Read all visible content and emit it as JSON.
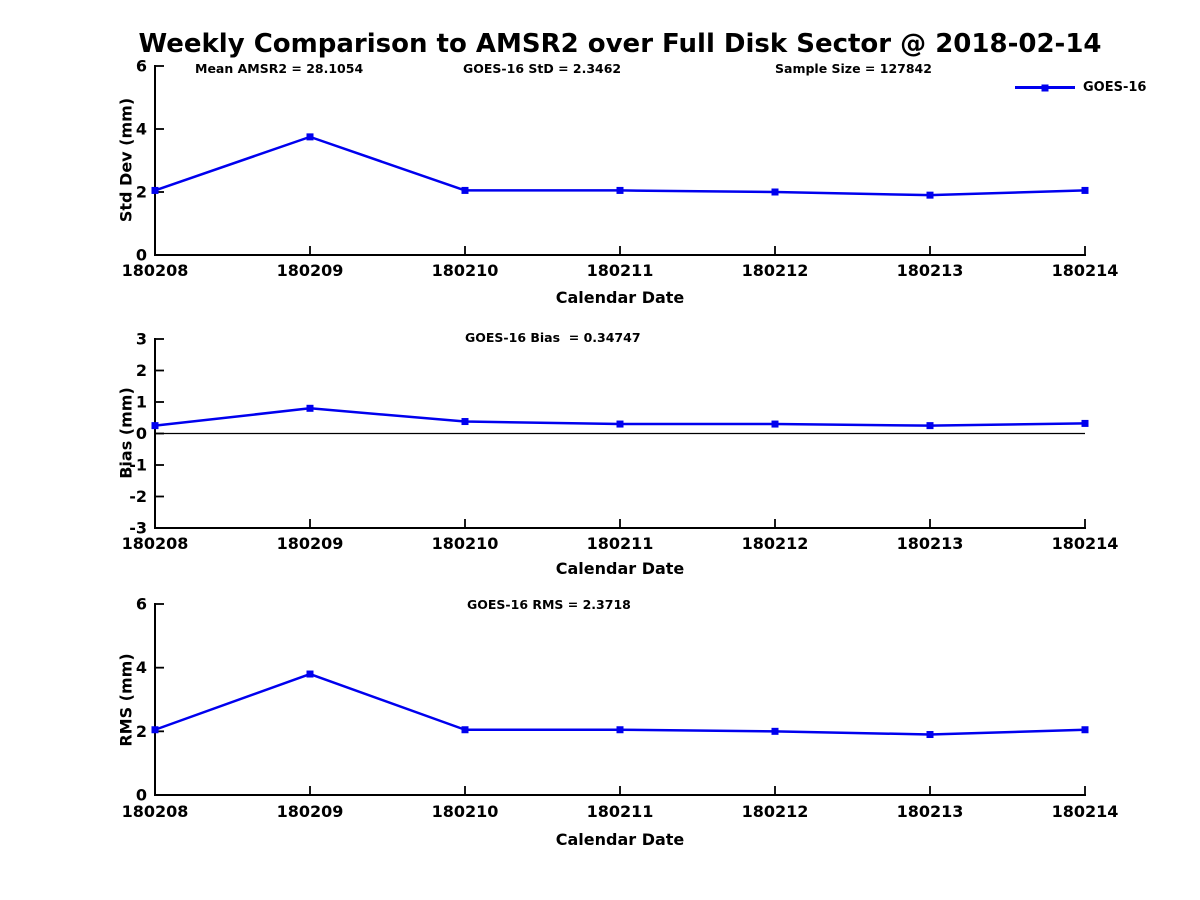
{
  "colors": {
    "line": "#0000EE",
    "axis": "#000000",
    "text": "#000000",
    "background": "#FFFFFF"
  },
  "legend": {
    "label": "GOES-16",
    "position": "top-right"
  },
  "chart_data": [
    {
      "name": "std-dev",
      "type": "line",
      "title": "Weekly Comparison to AMSR2 over Full Disk Sector @ 2018-02-14",
      "categories": [
        "180208",
        "180209",
        "180210",
        "180211",
        "180212",
        "180213",
        "180214"
      ],
      "series": [
        {
          "name": "GOES-16",
          "color": "#0000EE",
          "marker": "square",
          "values": [
            2.05,
            3.75,
            2.05,
            2.05,
            2.0,
            1.9,
            2.05
          ]
        }
      ],
      "xlabel": "Calendar Date",
      "ylabel": "Std Dev (mm)",
      "ylim": [
        0,
        6
      ],
      "yticks": [
        0,
        2,
        4,
        6
      ],
      "grid": false,
      "zero_line": false,
      "annotations": [
        "Mean AMSR2 = 28.1054",
        "GOES-16 StD = 2.3462",
        "Sample Size = 127842"
      ]
    },
    {
      "name": "bias",
      "type": "line",
      "title": "",
      "categories": [
        "180208",
        "180209",
        "180210",
        "180211",
        "180212",
        "180213",
        "180214"
      ],
      "series": [
        {
          "name": "GOES-16",
          "color": "#0000EE",
          "marker": "square",
          "values": [
            0.25,
            0.8,
            0.38,
            0.3,
            0.3,
            0.25,
            0.32
          ]
        }
      ],
      "xlabel": "Calendar Date",
      "ylabel": "Bias (mm)",
      "ylim": [
        -3,
        3
      ],
      "yticks": [
        -3,
        -2,
        -1,
        0,
        1,
        2,
        3
      ],
      "grid": false,
      "zero_line": true,
      "annotations": [
        "GOES-16 Bias  = 0.34747"
      ]
    },
    {
      "name": "rms",
      "type": "line",
      "title": "",
      "categories": [
        "180208",
        "180209",
        "180210",
        "180211",
        "180212",
        "180213",
        "180214"
      ],
      "series": [
        {
          "name": "GOES-16",
          "color": "#0000EE",
          "marker": "square",
          "values": [
            2.05,
            3.8,
            2.05,
            2.05,
            2.0,
            1.9,
            2.05
          ]
        }
      ],
      "xlabel": "Calendar Date",
      "ylabel": "RMS (mm)",
      "ylim": [
        0,
        6
      ],
      "yticks": [
        0,
        2,
        4,
        6
      ],
      "grid": false,
      "zero_line": false,
      "annotations": [
        "GOES-16 RMS = 2.3718"
      ]
    }
  ]
}
